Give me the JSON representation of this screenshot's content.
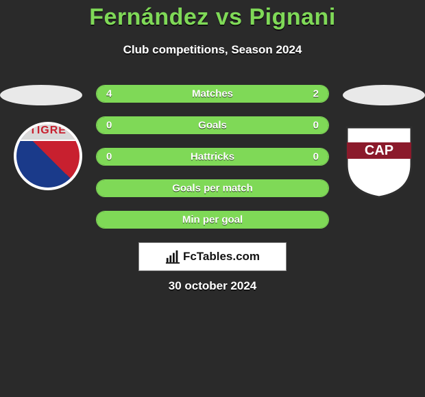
{
  "title": "Fernández vs Pignani",
  "subtitle": "Club competitions, Season 2024",
  "date": "30 october 2024",
  "brand": "FcTables.com",
  "colors": {
    "bg": "#2a2a2a",
    "accent": "#7fd957",
    "text": "#ffffff",
    "ellipse": "#e9e9e9"
  },
  "badge_left": {
    "name": "Tigre",
    "text": "TIGRE",
    "color_top": "#d9d9d9",
    "color_left": "#1a3a8a",
    "color_right": "#c8202f",
    "border_color": "#ffffff"
  },
  "badge_right": {
    "name": "CAP",
    "shield_fill": "#ffffff",
    "band_fill": "#8b1a2b",
    "text": "CAP",
    "border_color": "#2e2e2e"
  },
  "stats": [
    {
      "label": "Matches",
      "left_val": "4",
      "right_val": "2",
      "left_pct": 66.6,
      "right_pct": 33.4
    },
    {
      "label": "Goals",
      "left_val": "0",
      "right_val": "0",
      "left_pct": 0,
      "right_pct": 0,
      "full": true
    },
    {
      "label": "Hattricks",
      "left_val": "0",
      "right_val": "0",
      "left_pct": 0,
      "right_pct": 0,
      "full": true
    },
    {
      "label": "Goals per match",
      "left_val": "",
      "right_val": "",
      "left_pct": 0,
      "right_pct": 0,
      "full": true
    },
    {
      "label": "Min per goal",
      "left_val": "",
      "right_val": "",
      "left_pct": 0,
      "right_pct": 0,
      "full": true
    }
  ]
}
